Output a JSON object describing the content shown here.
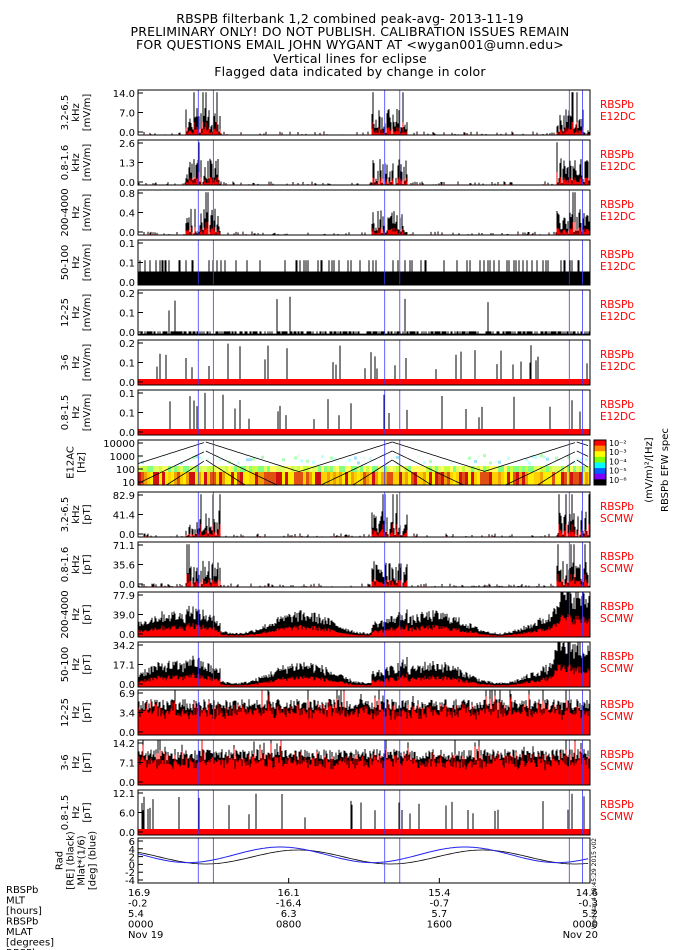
{
  "header": {
    "line1": "RBSPB filterbank 1,2 combined peak-avg- 2013-11-19",
    "line2": "PRELIMINARY ONLY! DO NOT PUBLISH. CALIBRATION ISSUES REMAIN",
    "line3": "FOR QUESTIONS EMAIL JOHN WYGANT AT <wygan001@umn.edu>",
    "line4": "Vertical lines for eclipse",
    "line5": "Flagged data indicated by change in color"
  },
  "colors": {
    "black": "#000000",
    "flag_red": "#ff0000",
    "eclipse_blue": "#3b3bff",
    "orbit_line": "#2222ee"
  },
  "panels": [
    {
      "label_lines": [
        "3.2-6.5",
        "kHz",
        "[mV/m]"
      ],
      "ticks": [
        "14.0",
        "7.0",
        "0.0"
      ],
      "right": [
        "RBSPb",
        "E12DC"
      ],
      "pattern": "spiky"
    },
    {
      "label_lines": [
        "0.8-1.6",
        "kHz",
        "[mV/m]"
      ],
      "ticks": [
        "2.6",
        "1.3",
        "0.0"
      ],
      "right": [
        "RBSPb",
        "E12DC"
      ],
      "pattern": "spiky"
    },
    {
      "label_lines": [
        "200-4000",
        "Hz",
        "[mV/m]"
      ],
      "ticks": [
        "0.8",
        "0.4",
        "0.0"
      ],
      "right": [
        "RBSPb",
        "E12DC"
      ],
      "pattern": "spiky"
    },
    {
      "label_lines": [
        "50-100",
        "Hz",
        "[mV/m]"
      ],
      "ticks": [
        "0.1",
        "0.1",
        "0.0"
      ],
      "right": [
        "RBSPb",
        "E12DC"
      ],
      "pattern": "step"
    },
    {
      "label_lines": [
        "12-25",
        "Hz",
        "[mV/m]"
      ],
      "ticks": [
        "0.2",
        "0.1",
        "0.0"
      ],
      "right": [
        "RBSPb",
        "E12DC"
      ],
      "pattern": "comb"
    },
    {
      "label_lines": [
        "3-6",
        "Hz",
        "[mV/m]"
      ],
      "ticks": [
        "0.2",
        "0.1",
        "0.0"
      ],
      "right": [
        "RBSPb",
        "E12DC"
      ],
      "pattern": "sparse"
    },
    {
      "label_lines": [
        "0.8-1.5",
        "Hz",
        "[mV/m]"
      ],
      "ticks": [
        "0.1",
        "0.1",
        "0.0"
      ],
      "right": [
        "RBSPb",
        "E12DC"
      ],
      "pattern": "sparse"
    },
    {
      "label_lines": [
        "E12AC",
        "[Hz]"
      ],
      "ticks": [
        "10000",
        "1000",
        "100",
        "10"
      ],
      "right": [],
      "pattern": "spec"
    },
    {
      "label_lines": [
        "3.2-6.5",
        "kHz",
        "[pT]"
      ],
      "ticks": [
        "82.9",
        "41.4",
        "0.0"
      ],
      "right": [
        "RBSPb",
        "SCMW"
      ],
      "pattern": "spiky"
    },
    {
      "label_lines": [
        "0.8-1.6",
        "kHz",
        "[pT]"
      ],
      "ticks": [
        "71.1",
        "35.6",
        "0.0"
      ],
      "right": [
        "RBSPb",
        "SCMW"
      ],
      "pattern": "spiky"
    },
    {
      "label_lines": [
        "200-4000",
        "Hz",
        "[pT]"
      ],
      "ticks": [
        "77.9",
        "39.0",
        "0.0"
      ],
      "right": [
        "RBSPb",
        "SCMW"
      ],
      "pattern": "broad"
    },
    {
      "label_lines": [
        "50-100",
        "Hz",
        "[pT]"
      ],
      "ticks": [
        "34.2",
        "17.1",
        "0.0"
      ],
      "right": [
        "RBSPb",
        "SCMW"
      ],
      "pattern": "broad"
    },
    {
      "label_lines": [
        "12-25",
        "Hz",
        "[pT]"
      ],
      "ticks": [
        "6.9",
        "3.4",
        "0.0"
      ],
      "right": [
        "RBSPb",
        "SCMW"
      ],
      "pattern": "dense"
    },
    {
      "label_lines": [
        "3-6",
        "Hz",
        "[pT]"
      ],
      "ticks": [
        "14.2",
        "7.1",
        "0.0"
      ],
      "right": [
        "RBSPb",
        "SCMW"
      ],
      "pattern": "dense"
    },
    {
      "label_lines": [
        "0.8-1.5",
        "Hz",
        "[pT]"
      ],
      "ticks": [
        "12.1",
        "6.0",
        "0.0"
      ],
      "right": [
        "RBSPb",
        "SCMW"
      ],
      "pattern": "sparse"
    },
    {
      "label_lines": [
        "Rad",
        "[RE] (black)",
        "Mlat*(1/6)",
        "[deg] (blue)"
      ],
      "ticks": [
        "6",
        "4",
        "2",
        "0",
        "-2",
        "-4"
      ],
      "right": [],
      "pattern": "orbit"
    }
  ],
  "colorbar": {
    "ticks": [
      "10⁻²",
      "10⁻³",
      "10⁻⁴",
      "10⁻⁵",
      "10⁻⁶"
    ],
    "label1": "(mV/m)²/[Hz]",
    "label2": "RBSPb EFW spec"
  },
  "timestamp": "Wed Mar 4 18:45:29 2015 v02",
  "bottom_axis": {
    "row_labels": [
      "RBSPb",
      "MLT",
      "[hours]",
      "RBSPb",
      "MLAT",
      "[degrees]",
      "RBSPb"
    ],
    "ticks": [
      {
        "mlt": "16.9",
        "mlat": "-0.2",
        "r": "5.4",
        "time": "0000",
        "date": "Nov 19"
      },
      {
        "mlt": "16.1",
        "mlat": "-16.4",
        "r": "6.3",
        "time": "0800",
        "date": ""
      },
      {
        "mlt": "15.4",
        "mlat": "-0.7",
        "r": "5.7",
        "time": "1600",
        "date": ""
      },
      {
        "mlt": "14.6",
        "mlat": "-0.3",
        "r": "5.2",
        "time": "0000",
        "date": "Nov 20"
      }
    ]
  },
  "chart_data": {
    "type": "line",
    "title": "RBSPB filterbank 1,2 combined peak-avg- 2013-11-19",
    "x_range": [
      "2013-11-19 00:00",
      "2013-11-20 00:00"
    ],
    "x_ticks": [
      "0000",
      "0800",
      "1600",
      "0000"
    ],
    "eclipse_hours": [
      [
        3.2,
        4.0
      ],
      [
        13.1,
        13.9
      ],
      [
        22.9,
        23.6
      ]
    ],
    "series": [
      {
        "name": "E12DC 3.2-6.5 kHz",
        "ylim": [
          0,
          14.0
        ]
      },
      {
        "name": "E12DC 0.8-1.6 kHz",
        "ylim": [
          0,
          2.6
        ]
      },
      {
        "name": "E12DC 200-4000 Hz",
        "ylim": [
          0,
          0.8
        ]
      },
      {
        "name": "E12DC 50-100 Hz",
        "ylim": [
          0,
          0.1
        ]
      },
      {
        "name": "E12DC 12-25 Hz",
        "ylim": [
          0,
          0.2
        ]
      },
      {
        "name": "E12DC 3-6 Hz",
        "ylim": [
          0,
          0.2
        ]
      },
      {
        "name": "E12DC 0.8-1.5 Hz",
        "ylim": [
          0,
          0.1
        ]
      },
      {
        "name": "SCMW 3.2-6.5 kHz",
        "ylim": [
          0,
          82.9
        ]
      },
      {
        "name": "SCMW 0.8-1.6 kHz",
        "ylim": [
          0,
          71.1
        ]
      },
      {
        "name": "SCMW 200-4000 Hz",
        "ylim": [
          0,
          77.9
        ]
      },
      {
        "name": "SCMW 50-100 Hz",
        "ylim": [
          0,
          34.2
        ]
      },
      {
        "name": "SCMW 12-25 Hz",
        "ylim": [
          0,
          6.9
        ]
      },
      {
        "name": "SCMW 3-6 Hz",
        "ylim": [
          0,
          14.2
        ]
      },
      {
        "name": "SCMW 0.8-1.5 Hz",
        "ylim": [
          0,
          12.1
        ]
      }
    ]
  }
}
